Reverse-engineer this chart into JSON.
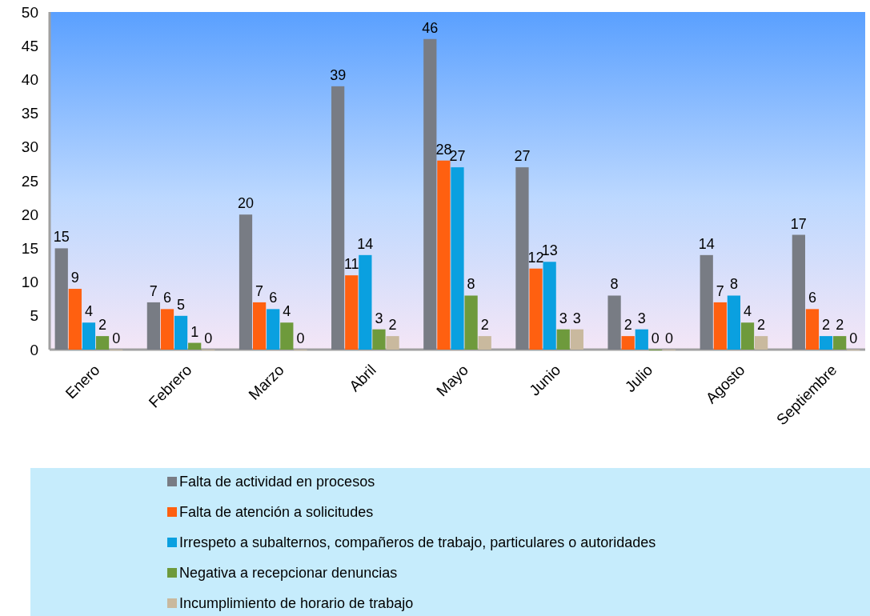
{
  "chart_data": {
    "type": "bar",
    "categories": [
      "Enero",
      "Febrero",
      "Marzo",
      "Abril",
      "Mayo",
      "Junio",
      "Julio",
      "Agosto",
      "Septiembre"
    ],
    "series": [
      {
        "name": "Falta de actividad en procesos",
        "color": "#787c84",
        "values": [
          15,
          7,
          20,
          39,
          46,
          27,
          8,
          14,
          17
        ]
      },
      {
        "name": "Falta de atención a solicitudes",
        "color": "#ff6010",
        "values": [
          9,
          6,
          7,
          11,
          28,
          12,
          2,
          7,
          6
        ]
      },
      {
        "name": "Irrespeto a subalternos, compañeros de trabajo, particulares o autoridades",
        "color": "#0aa0e0",
        "values": [
          4,
          5,
          6,
          14,
          27,
          13,
          3,
          8,
          2
        ]
      },
      {
        "name": "Negativa a recepcionar denuncias",
        "color": "#6e9a3c",
        "values": [
          2,
          1,
          4,
          3,
          8,
          3,
          0,
          4,
          2
        ]
      },
      {
        "name": "Incumplimiento de horario de trabajo",
        "color": "#c9b99e",
        "values": [
          0,
          0,
          0,
          2,
          2,
          3,
          0,
          2,
          0
        ]
      }
    ],
    "ylim": [
      0,
      50
    ],
    "yticks": [
      0,
      5,
      10,
      15,
      20,
      25,
      30,
      35,
      40,
      45,
      50
    ],
    "data_labels": true,
    "legend": "bottom"
  }
}
